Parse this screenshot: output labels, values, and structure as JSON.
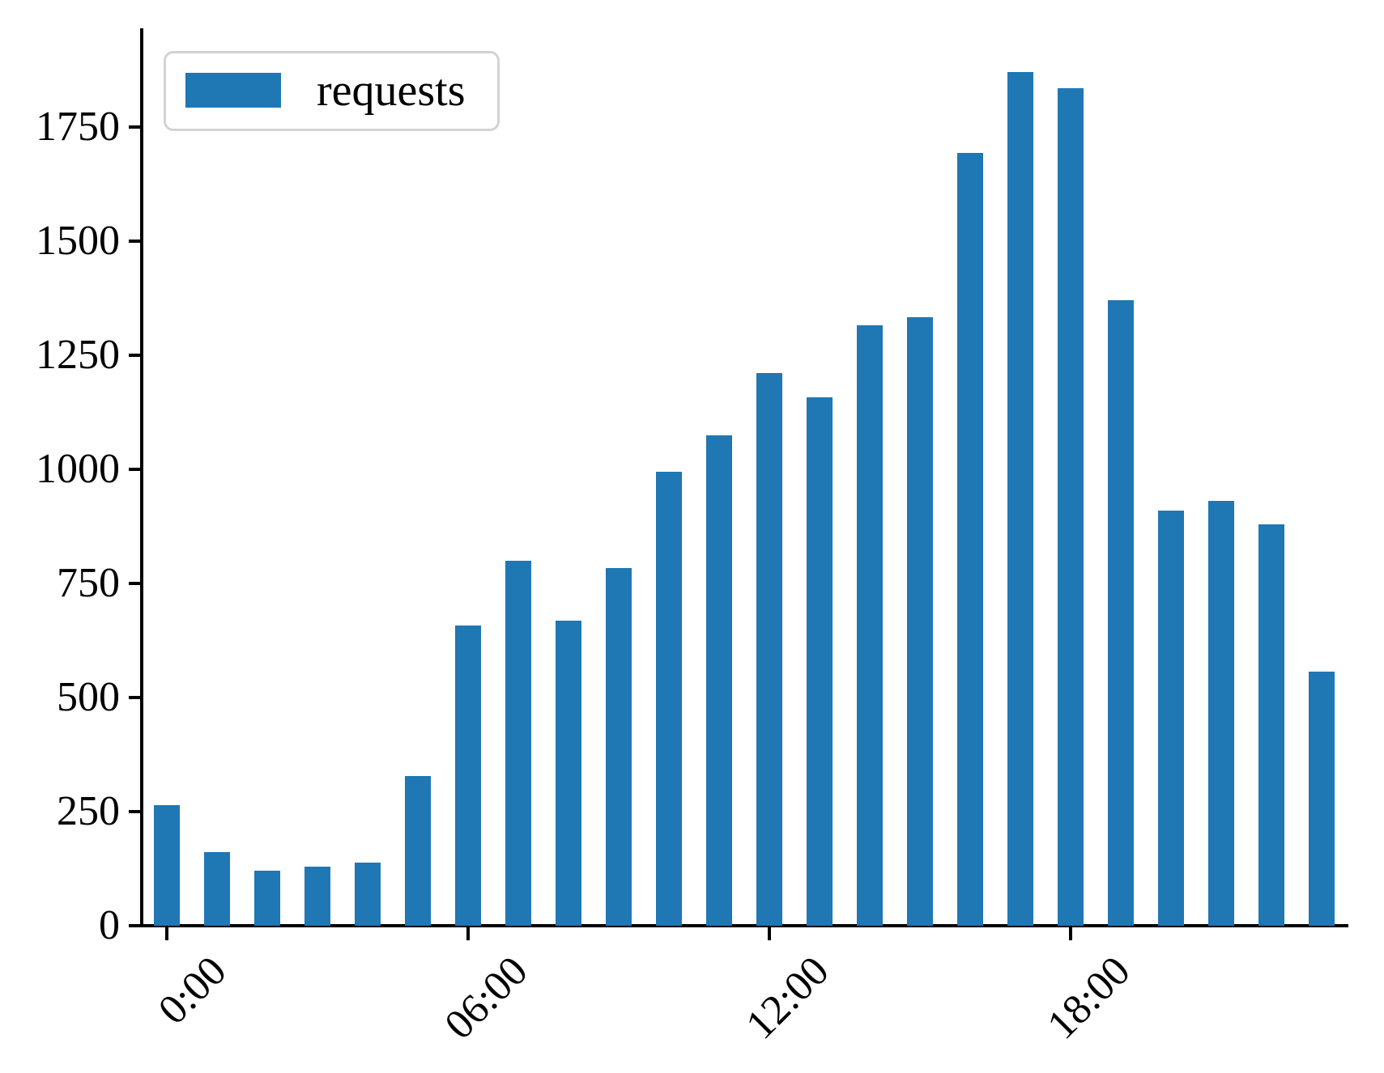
{
  "figure": {
    "background": "#ffffff",
    "text_color": "#000000"
  },
  "legend": {
    "label": "requests",
    "swatch_color": "#1f77b4",
    "border_color": "#d3d3d3",
    "position": "upper-left"
  },
  "chart_data": {
    "type": "bar",
    "title": "",
    "xlabel": "",
    "ylabel": "",
    "x": [
      "0:00",
      "1:00",
      "2:00",
      "3:00",
      "4:00",
      "5:00",
      "6:00",
      "7:00",
      "8:00",
      "9:00",
      "10:00",
      "11:00",
      "12:00",
      "13:00",
      "14:00",
      "15:00",
      "16:00",
      "17:00",
      "18:00",
      "19:00",
      "20:00",
      "21:00",
      "22:00",
      "23:00"
    ],
    "series": [
      {
        "name": "requests",
        "values": [
          264,
          161,
          121,
          129,
          138,
          328,
          657,
          800,
          669,
          784,
          994,
          1074,
          1211,
          1157,
          1316,
          1333,
          1693,
          1870,
          1835,
          1371,
          910,
          931,
          880,
          557
        ]
      }
    ],
    "bar_color": "#1f77b4",
    "y_ticks": [
      0,
      250,
      500,
      750,
      1000,
      1250,
      1500,
      1750
    ],
    "x_tick_labels": [
      "0:00",
      "06:00",
      "12:00",
      "18:00"
    ],
    "x_tick_indices": [
      0,
      6,
      12,
      18
    ],
    "ylim": [
      0,
      1966
    ],
    "grid": false,
    "legend_position": "upper-left"
  }
}
